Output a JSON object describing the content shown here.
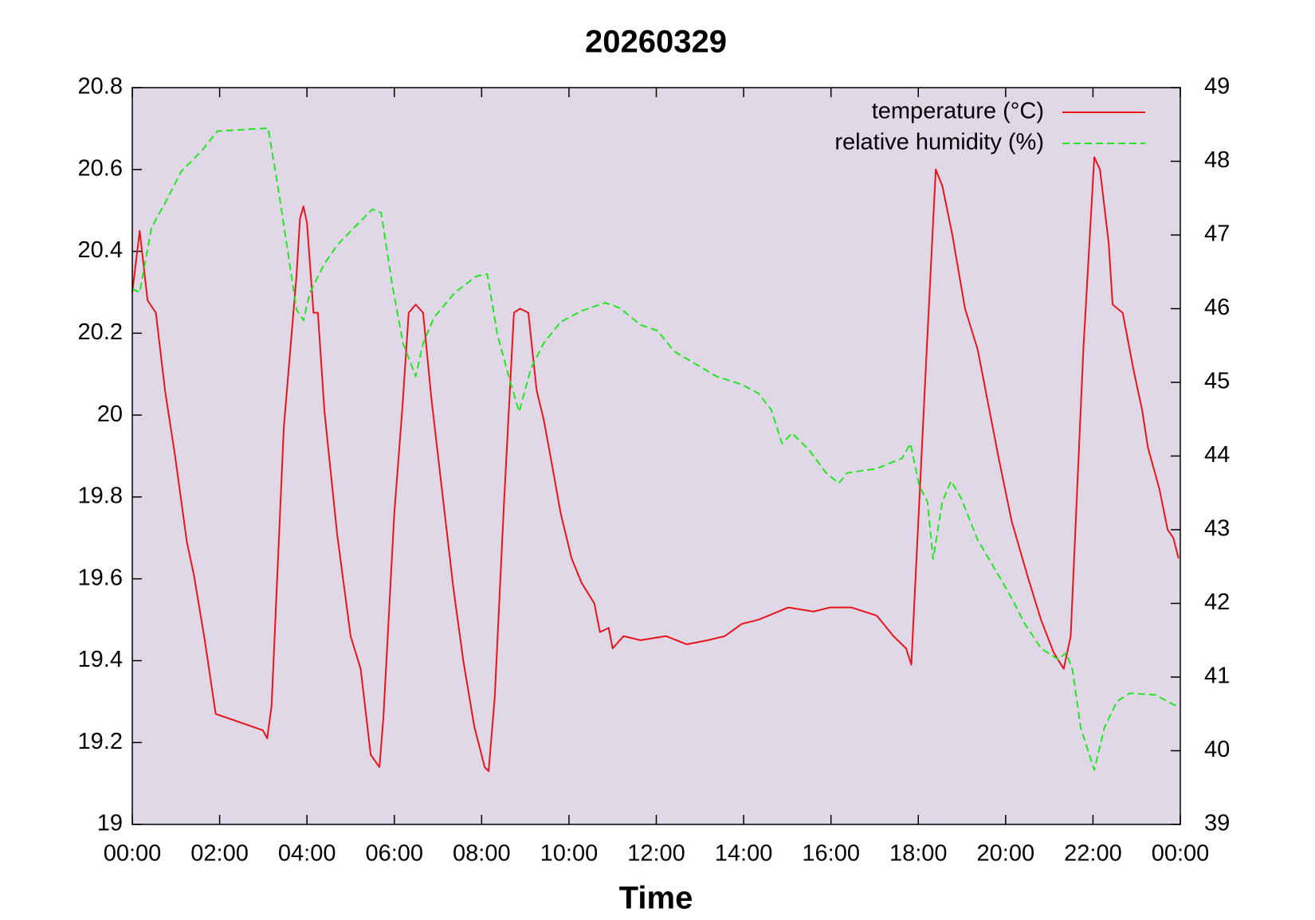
{
  "chart_data": {
    "type": "line",
    "title": "20260329",
    "x_label": "Time",
    "xlim": [
      0,
      24
    ],
    "xticks": [
      {
        "value": 0,
        "label": "00:00"
      },
      {
        "value": 2,
        "label": "02:00"
      },
      {
        "value": 4,
        "label": "04:00"
      },
      {
        "value": 6,
        "label": "06:00"
      },
      {
        "value": 8,
        "label": "08:00"
      },
      {
        "value": 10,
        "label": "10:00"
      },
      {
        "value": 12,
        "label": "12:00"
      },
      {
        "value": 14,
        "label": "14:00"
      },
      {
        "value": 16,
        "label": "16:00"
      },
      {
        "value": 18,
        "label": "18:00"
      },
      {
        "value": 20,
        "label": "20:00"
      },
      {
        "value": 22,
        "label": "22:00"
      },
      {
        "value": 24,
        "label": "00:00"
      }
    ],
    "ylim": [
      19,
      20.8
    ],
    "yticks": [
      19,
      19.2,
      19.4,
      19.6,
      19.8,
      20,
      20.2,
      20.4,
      20.6,
      20.8
    ],
    "y2lim": [
      39,
      49
    ],
    "y2ticks": [
      39,
      40,
      41,
      42,
      43,
      44,
      45,
      46,
      47,
      48,
      49
    ],
    "legend": "top-right",
    "plot_background": "#e0d8e6",
    "series": [
      {
        "name": "temperature (°C)",
        "color": "#e8141c",
        "style": "solid",
        "axis": "y",
        "x": [
          0,
          0.17,
          0.35,
          0.54,
          0.75,
          0.98,
          1.25,
          1.41,
          1.66,
          1.91,
          2.99,
          3.09,
          3.19,
          3.47,
          3.76,
          3.84,
          3.92,
          4.0,
          4.15,
          4.25,
          4.4,
          4.69,
          5.0,
          5.23,
          5.46,
          5.66,
          5.75,
          6.0,
          6.18,
          6.33,
          6.49,
          6.66,
          6.85,
          7.1,
          7.35,
          7.58,
          7.83,
          8.07,
          8.16,
          8.3,
          8.51,
          8.74,
          8.88,
          9.07,
          9.26,
          9.42,
          9.61,
          9.81,
          10.06,
          10.29,
          10.58,
          10.71,
          10.91,
          11.0,
          11.25,
          11.64,
          12.22,
          12.7,
          13.18,
          13.57,
          13.96,
          14.34,
          15.02,
          15.6,
          15.98,
          16.47,
          17.05,
          17.43,
          17.72,
          17.84,
          18.17,
          18.4,
          18.55,
          18.78,
          19.07,
          19.36,
          19.65,
          19.85,
          20.14,
          20.52,
          20.81,
          21.1,
          21.33,
          21.49,
          21.78,
          22.03,
          22.16,
          22.36,
          22.45,
          22.68,
          22.93,
          23.13,
          23.26,
          23.52,
          23.71,
          23.84,
          23.96
        ],
        "values": [
          20.3,
          20.45,
          20.28,
          20.25,
          20.06,
          19.9,
          19.69,
          19.61,
          19.45,
          19.27,
          19.23,
          19.21,
          19.29,
          19.97,
          20.34,
          20.48,
          20.51,
          20.47,
          20.25,
          20.25,
          20.01,
          19.71,
          19.46,
          19.38,
          19.17,
          19.14,
          19.26,
          19.76,
          20.01,
          20.25,
          20.27,
          20.25,
          20.04,
          19.81,
          19.58,
          19.4,
          19.24,
          19.14,
          19.13,
          19.31,
          19.78,
          20.25,
          20.26,
          20.25,
          20.06,
          19.99,
          19.88,
          19.76,
          19.65,
          19.59,
          19.54,
          19.47,
          19.48,
          19.43,
          19.46,
          19.45,
          19.46,
          19.44,
          19.45,
          19.46,
          19.49,
          19.5,
          19.53,
          19.52,
          19.53,
          19.53,
          19.51,
          19.46,
          19.43,
          19.39,
          20.11,
          20.6,
          20.56,
          20.44,
          20.26,
          20.16,
          20.0,
          19.89,
          19.74,
          19.6,
          19.5,
          19.42,
          19.38,
          19.46,
          20.16,
          20.63,
          20.6,
          20.42,
          20.27,
          20.25,
          20.11,
          20.01,
          19.92,
          19.82,
          19.72,
          19.7,
          19.65
        ]
      },
      {
        "name": "relative humidity (%)",
        "color": "#22e622",
        "style": "dashed",
        "axis": "y2",
        "x": [
          0,
          0.17,
          0.44,
          0.73,
          1.12,
          1.6,
          1.95,
          3.11,
          3.34,
          3.53,
          3.76,
          3.92,
          4.07,
          4.4,
          4.69,
          5.08,
          5.5,
          5.7,
          5.95,
          6.2,
          6.49,
          6.66,
          6.91,
          7.39,
          7.88,
          8.13,
          8.36,
          8.65,
          8.86,
          9.13,
          9.42,
          9.81,
          10.29,
          10.83,
          11.16,
          11.64,
          12.03,
          12.41,
          12.9,
          13.38,
          13.96,
          14.34,
          14.63,
          14.88,
          15.11,
          15.5,
          15.89,
          16.18,
          16.37,
          17.05,
          17.63,
          17.82,
          18.02,
          18.21,
          18.34,
          18.55,
          18.75,
          18.98,
          19.36,
          19.75,
          20.14,
          20.43,
          20.81,
          21.2,
          21.39,
          21.53,
          21.72,
          22.03,
          22.26,
          22.55,
          22.84,
          23.42,
          23.96
        ],
        "values": [
          46.27,
          46.22,
          47.1,
          47.41,
          47.86,
          48.15,
          48.41,
          48.45,
          47.64,
          46.9,
          45.99,
          45.84,
          46.22,
          46.61,
          46.86,
          47.1,
          47.35,
          47.3,
          46.33,
          45.53,
          45.08,
          45.53,
          45.88,
          46.22,
          46.44,
          46.47,
          45.65,
          45.02,
          44.6,
          45.19,
          45.53,
          45.82,
          45.97,
          46.08,
          46.01,
          45.78,
          45.7,
          45.42,
          45.25,
          45.08,
          44.97,
          44.85,
          44.63,
          44.17,
          44.31,
          44.08,
          43.77,
          43.63,
          43.77,
          43.83,
          43.97,
          44.17,
          43.6,
          43.38,
          42.6,
          43.38,
          43.66,
          43.43,
          42.86,
          42.47,
          42.07,
          41.73,
          41.39,
          41.24,
          41.33,
          41.1,
          40.31,
          39.74,
          40.31,
          40.67,
          40.78,
          40.76,
          40.59
        ]
      }
    ]
  }
}
